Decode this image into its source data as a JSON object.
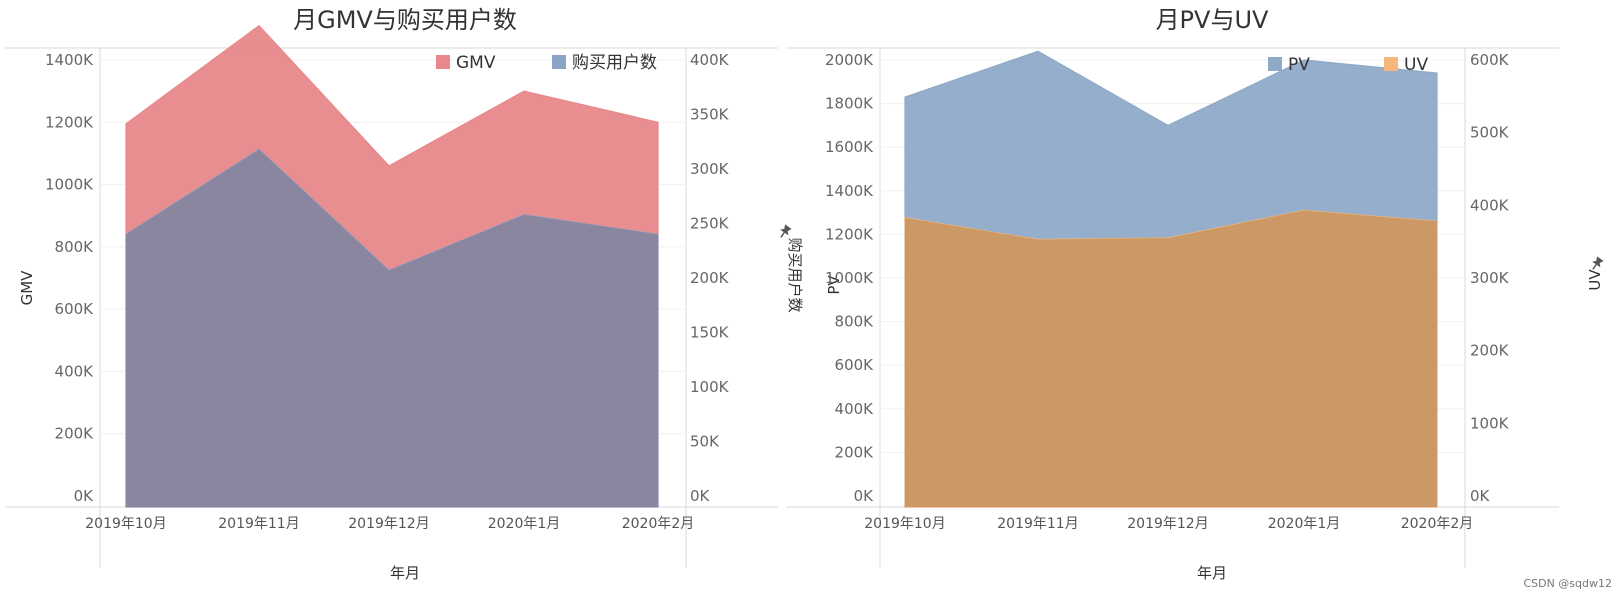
{
  "watermark": "CSDN @sqdw12",
  "chart_data": [
    {
      "type": "area",
      "title": "月GMV与购买用户数",
      "xlabel": "年月",
      "ylabel_left": "GMV",
      "ylabel_right": "购买用户数",
      "right_axis_pin_icon": "pin-icon",
      "categories": [
        "2019年10月",
        "2019年11月",
        "2019年12月",
        "2020年1月",
        "2020年2月"
      ],
      "ylim_left": [
        0,
        1400000
      ],
      "yticks_left": [
        "0K",
        "200K",
        "400K",
        "600K",
        "800K",
        "1000K",
        "1200K",
        "1400K"
      ],
      "ylim_right": [
        0,
        400000
      ],
      "yticks_right": [
        "0K",
        "50K",
        "100K",
        "150K",
        "200K",
        "250K",
        "300K",
        "350K",
        "400K"
      ],
      "series": [
        {
          "name": "GMV",
          "axis": "left",
          "color": "#e8888a",
          "values": [
            1195000,
            1510000,
            1060000,
            1300000,
            1200000
          ]
        },
        {
          "name": "购买用户数",
          "axis": "right",
          "color": "#8ba3c4",
          "values": [
            240000,
            318000,
            207000,
            258000,
            240000
          ]
        }
      ],
      "overlap_color": "#8b86a0",
      "legend": "top",
      "grid": true
    },
    {
      "type": "area",
      "title": "月PV与UV",
      "xlabel": "年月",
      "ylabel_left": "PV",
      "ylabel_right": "UV",
      "right_axis_pin_icon": "pin-icon",
      "categories": [
        "2019年10月",
        "2019年11月",
        "2019年12月",
        "2020年1月",
        "2020年2月"
      ],
      "ylim_left": [
        0,
        2000000
      ],
      "yticks_left": [
        "0K",
        "200K",
        "400K",
        "600K",
        "800K",
        "1000K",
        "1200K",
        "1400K",
        "1600K",
        "1800K",
        "2000K"
      ],
      "ylim_right": [
        0,
        600000
      ],
      "yticks_right": [
        "0K",
        "100K",
        "200K",
        "300K",
        "400K",
        "500K",
        "600K"
      ],
      "series": [
        {
          "name": "PV",
          "axis": "left",
          "color": "#8eaac8",
          "values": [
            1830000,
            2040000,
            1700000,
            2000000,
            1940000
          ]
        },
        {
          "name": "UV",
          "axis": "right",
          "color": "#f5b87a",
          "values": [
            383000,
            353000,
            355000,
            393000,
            378000
          ]
        }
      ],
      "overlap_color": "#cc9966",
      "legend": "top",
      "grid": true
    }
  ]
}
